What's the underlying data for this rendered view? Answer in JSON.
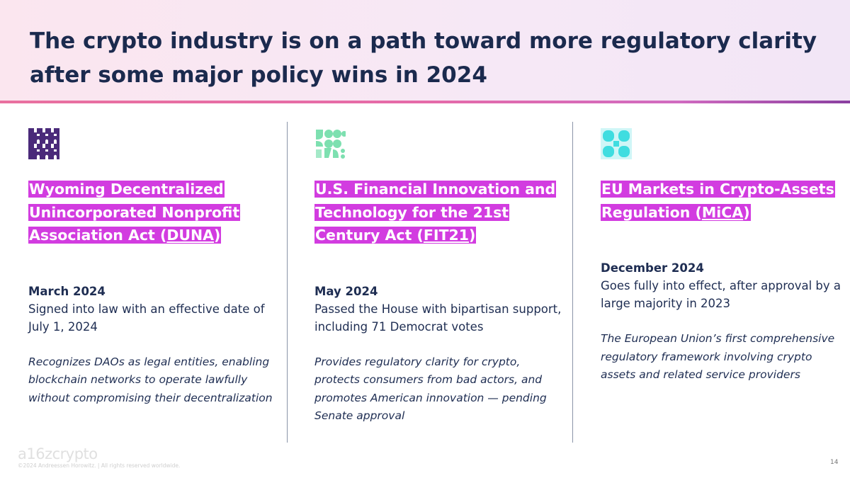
{
  "title": "The crypto industry is on a path toward more regulatory clarity after some major policy wins in 2024",
  "columns": [
    {
      "icon": "purple-pattern-icon",
      "icon_color": "#4a2a7a",
      "heading_pre": "Wyoming Decentralized Unincorporated Nonprofit Association Act (",
      "heading_abbr": "DUNA",
      "heading_post": ")",
      "date": "March 2024",
      "description": "Signed into law with an effective date of July 1, 2024",
      "note": "Recognizes DAOs as legal entities, enabling blockchain networks to operate lawfully without compromising their decentralization"
    },
    {
      "icon": "green-pattern-icon",
      "icon_color": "#7de0b0",
      "heading_pre": "U.S. Financial Innovation and Technology for the 21st Century Act (",
      "heading_abbr": "FIT21",
      "heading_post": ")",
      "date": "May 2024",
      "description": "Passed the House with bipartisan support, including 71 Democrat votes",
      "note": "Provides regulatory clarity for crypto, protects consumers from bad actors, and promotes American innovation — pending Senate approval"
    },
    {
      "icon": "cyan-pattern-icon",
      "icon_color": "#3fdde0",
      "heading_pre": "EU Markets in Crypto-Assets Regulation (",
      "heading_abbr": "MiCA",
      "heading_post": ")",
      "date": "December 2024",
      "description": "Goes fully into effect, after approval by a large majority in 2023",
      "note": "The European Union’s first comprehensive regulatory framework involving crypto assets and related service providers"
    }
  ],
  "highlight_color": "#d23ce0",
  "footer": {
    "logo": "a16zcrypto",
    "copyright": "©2024 Andreessen Horowitz. |  All rights reserved worldwide.",
    "page_number": "14"
  }
}
